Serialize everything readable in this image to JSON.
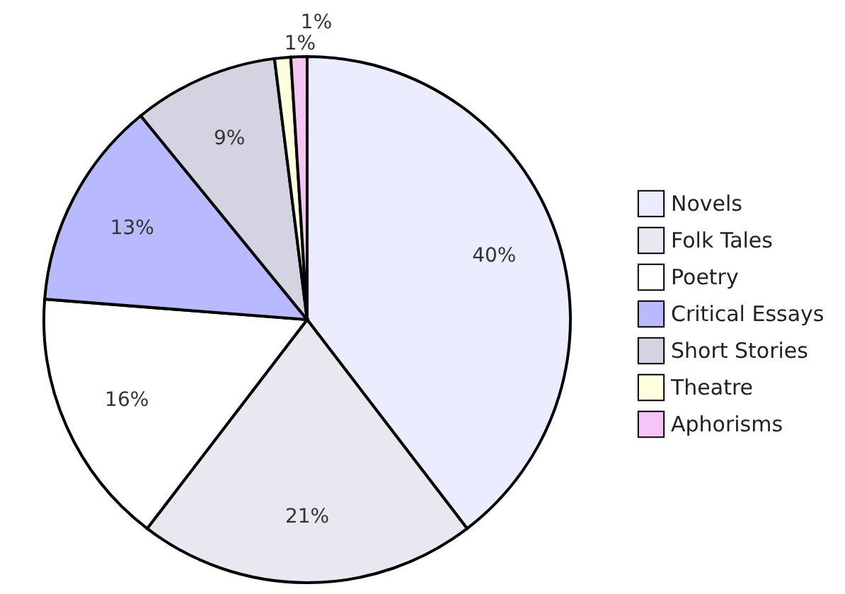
{
  "chart_data": {
    "type": "pie",
    "categories": [
      "Novels",
      "Folk Tales",
      "Poetry",
      "Critical Essays",
      "Short Stories",
      "Theatre",
      "Aphorisms"
    ],
    "values": [
      40,
      21,
      16,
      13,
      9,
      1,
      1
    ],
    "colors": [
      "#ececff",
      "#e8e8f0",
      "#ffffff",
      "#b9b9ff",
      "#d3d3e1",
      "#ffffde",
      "#f7c4f7"
    ],
    "value_labels": [
      "40%",
      "21%",
      "16%",
      "13%",
      "9%",
      "1%",
      "1%"
    ],
    "legend": "right"
  }
}
